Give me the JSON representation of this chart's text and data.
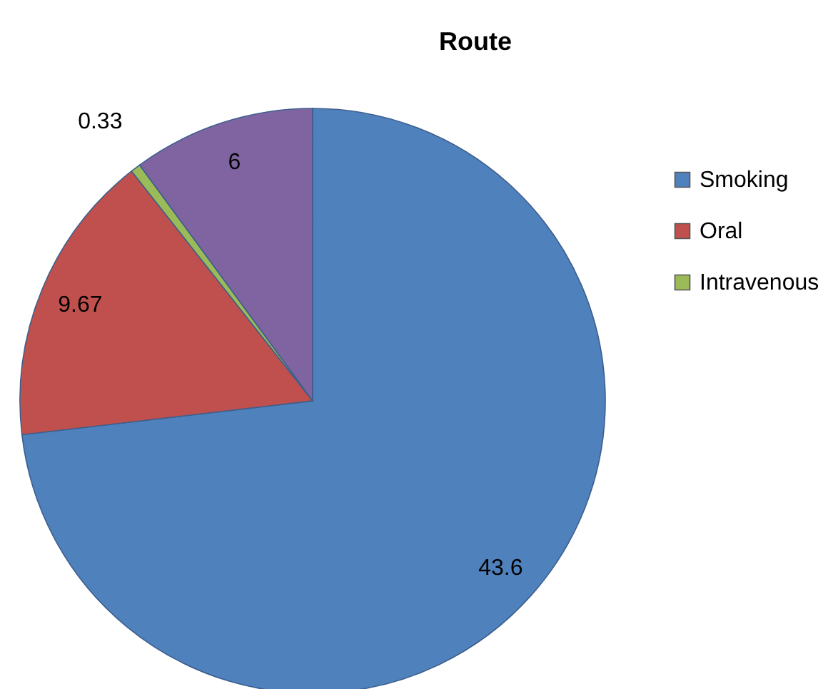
{
  "chart_data": {
    "type": "pie",
    "title": "Route",
    "categories": [
      "Smoking",
      "Oral",
      "Intravenous",
      null
    ],
    "values": [
      43.6,
      9.67,
      0.33,
      6
    ],
    "colors": [
      "#4f81bd",
      "#c0504d",
      "#9bbb59",
      "#8064a2"
    ],
    "data_labels": true,
    "legend": "right"
  }
}
